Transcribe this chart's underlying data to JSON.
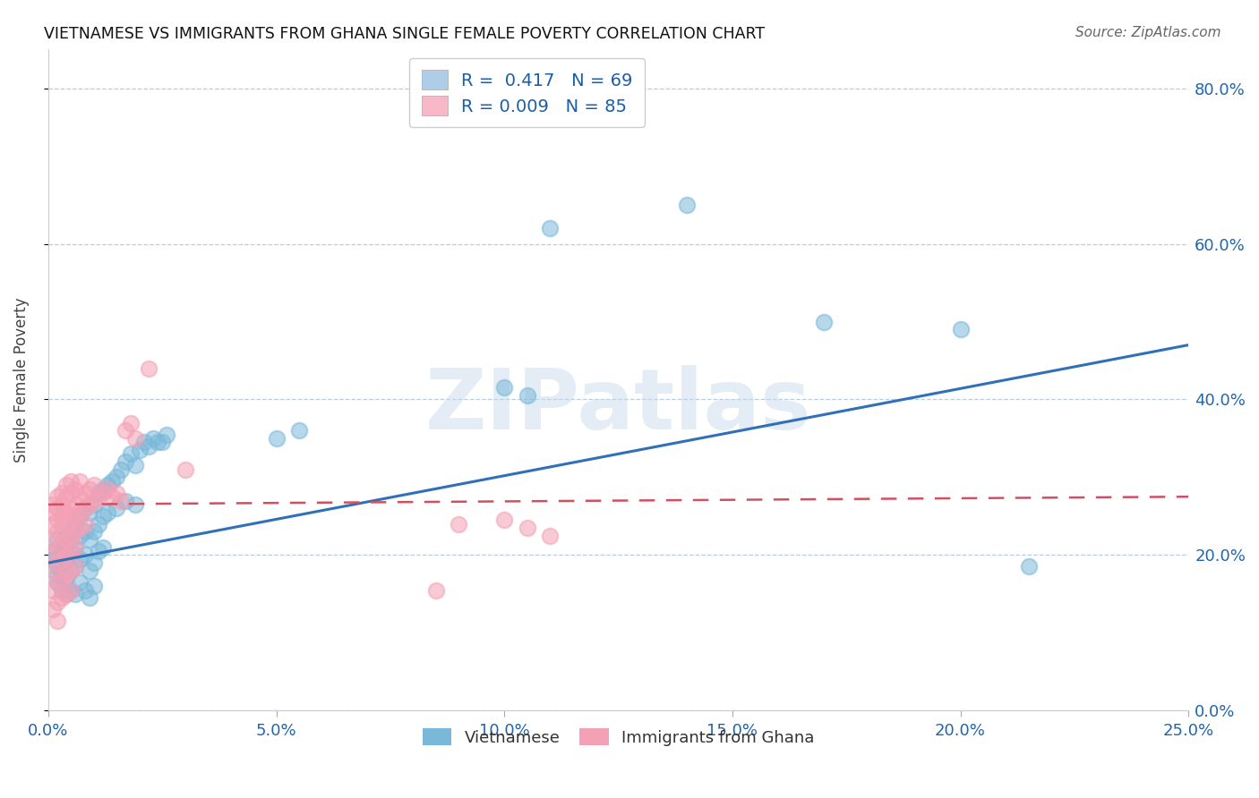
{
  "title": "VIETNAMESE VS IMMIGRANTS FROM GHANA SINGLE FEMALE POVERTY CORRELATION CHART",
  "source": "Source: ZipAtlas.com",
  "xlim": [
    0.0,
    0.25
  ],
  "ylim": [
    0.0,
    0.85
  ],
  "xtick_vals": [
    0.0,
    0.05,
    0.1,
    0.15,
    0.2,
    0.25
  ],
  "xtick_labels": [
    "0.0%",
    "5.0%",
    "10.0%",
    "15.0%",
    "20.0%",
    "25.0%"
  ],
  "ytick_vals": [
    0.0,
    0.2,
    0.4,
    0.6,
    0.8
  ],
  "ytick_labels": [
    "0.0%",
    "20.0%",
    "40.0%",
    "60.0%",
    "80.0%"
  ],
  "legend_entries": [
    {
      "label": "R =  0.417   N = 69",
      "facecolor": "#aecde8"
    },
    {
      "label": "R = 0.009   N = 85",
      "facecolor": "#f9b8c8"
    }
  ],
  "legend_labels": [
    "Vietnamese",
    "Immigrants from Ghana"
  ],
  "blue_color": "#7ab8d9",
  "pink_color": "#f4a0b5",
  "blue_line_color": "#3070b8",
  "pink_line_color": "#d05060",
  "watermark_text": "ZIPatlas",
  "ylabel": "Single Female Poverty",
  "blue_line": [
    [
      0.0,
      0.19
    ],
    [
      0.25,
      0.47
    ]
  ],
  "pink_line": [
    [
      0.0,
      0.265
    ],
    [
      0.25,
      0.275
    ]
  ],
  "blue_scatter": [
    [
      0.001,
      0.205
    ],
    [
      0.001,
      0.195
    ],
    [
      0.002,
      0.22
    ],
    [
      0.002,
      0.185
    ],
    [
      0.002,
      0.175
    ],
    [
      0.002,
      0.165
    ],
    [
      0.003,
      0.21
    ],
    [
      0.003,
      0.2
    ],
    [
      0.003,
      0.19
    ],
    [
      0.003,
      0.175
    ],
    [
      0.003,
      0.155
    ],
    [
      0.004,
      0.225
    ],
    [
      0.004,
      0.215
    ],
    [
      0.004,
      0.195
    ],
    [
      0.004,
      0.17
    ],
    [
      0.004,
      0.15
    ],
    [
      0.005,
      0.23
    ],
    [
      0.005,
      0.205
    ],
    [
      0.005,
      0.18
    ],
    [
      0.005,
      0.155
    ],
    [
      0.006,
      0.24
    ],
    [
      0.006,
      0.21
    ],
    [
      0.006,
      0.185
    ],
    [
      0.006,
      0.15
    ],
    [
      0.007,
      0.25
    ],
    [
      0.007,
      0.225
    ],
    [
      0.007,
      0.195
    ],
    [
      0.007,
      0.165
    ],
    [
      0.008,
      0.26
    ],
    [
      0.008,
      0.23
    ],
    [
      0.008,
      0.2
    ],
    [
      0.008,
      0.155
    ],
    [
      0.009,
      0.255
    ],
    [
      0.009,
      0.22
    ],
    [
      0.009,
      0.18
    ],
    [
      0.009,
      0.145
    ],
    [
      0.01,
      0.265
    ],
    [
      0.01,
      0.23
    ],
    [
      0.01,
      0.19
    ],
    [
      0.01,
      0.16
    ],
    [
      0.011,
      0.28
    ],
    [
      0.011,
      0.24
    ],
    [
      0.011,
      0.205
    ],
    [
      0.012,
      0.285
    ],
    [
      0.012,
      0.25
    ],
    [
      0.012,
      0.21
    ],
    [
      0.013,
      0.29
    ],
    [
      0.013,
      0.255
    ],
    [
      0.014,
      0.295
    ],
    [
      0.015,
      0.3
    ],
    [
      0.015,
      0.26
    ],
    [
      0.016,
      0.31
    ],
    [
      0.017,
      0.32
    ],
    [
      0.017,
      0.27
    ],
    [
      0.018,
      0.33
    ],
    [
      0.019,
      0.315
    ],
    [
      0.019,
      0.265
    ],
    [
      0.02,
      0.335
    ],
    [
      0.021,
      0.345
    ],
    [
      0.022,
      0.34
    ],
    [
      0.023,
      0.35
    ],
    [
      0.024,
      0.345
    ],
    [
      0.025,
      0.345
    ],
    [
      0.026,
      0.355
    ],
    [
      0.05,
      0.35
    ],
    [
      0.055,
      0.36
    ],
    [
      0.1,
      0.415
    ],
    [
      0.105,
      0.405
    ],
    [
      0.11,
      0.62
    ],
    [
      0.14,
      0.65
    ],
    [
      0.17,
      0.5
    ],
    [
      0.2,
      0.49
    ],
    [
      0.215,
      0.185
    ]
  ],
  "pink_scatter": [
    [
      0.001,
      0.265
    ],
    [
      0.001,
      0.255
    ],
    [
      0.001,
      0.24
    ],
    [
      0.001,
      0.22
    ],
    [
      0.001,
      0.2
    ],
    [
      0.001,
      0.18
    ],
    [
      0.001,
      0.155
    ],
    [
      0.001,
      0.13
    ],
    [
      0.002,
      0.275
    ],
    [
      0.002,
      0.26
    ],
    [
      0.002,
      0.245
    ],
    [
      0.002,
      0.23
    ],
    [
      0.002,
      0.21
    ],
    [
      0.002,
      0.19
    ],
    [
      0.002,
      0.165
    ],
    [
      0.002,
      0.14
    ],
    [
      0.002,
      0.115
    ],
    [
      0.003,
      0.28
    ],
    [
      0.003,
      0.265
    ],
    [
      0.003,
      0.25
    ],
    [
      0.003,
      0.235
    ],
    [
      0.003,
      0.215
    ],
    [
      0.003,
      0.195
    ],
    [
      0.003,
      0.17
    ],
    [
      0.003,
      0.145
    ],
    [
      0.004,
      0.29
    ],
    [
      0.004,
      0.275
    ],
    [
      0.004,
      0.255
    ],
    [
      0.004,
      0.24
    ],
    [
      0.004,
      0.22
    ],
    [
      0.004,
      0.2
    ],
    [
      0.004,
      0.175
    ],
    [
      0.004,
      0.15
    ],
    [
      0.005,
      0.295
    ],
    [
      0.005,
      0.28
    ],
    [
      0.005,
      0.26
    ],
    [
      0.005,
      0.245
    ],
    [
      0.005,
      0.225
    ],
    [
      0.005,
      0.205
    ],
    [
      0.005,
      0.18
    ],
    [
      0.005,
      0.155
    ],
    [
      0.006,
      0.285
    ],
    [
      0.006,
      0.265
    ],
    [
      0.006,
      0.25
    ],
    [
      0.006,
      0.23
    ],
    [
      0.006,
      0.21
    ],
    [
      0.006,
      0.185
    ],
    [
      0.007,
      0.295
    ],
    [
      0.007,
      0.275
    ],
    [
      0.007,
      0.255
    ],
    [
      0.007,
      0.235
    ],
    [
      0.008,
      0.28
    ],
    [
      0.008,
      0.26
    ],
    [
      0.008,
      0.24
    ],
    [
      0.009,
      0.285
    ],
    [
      0.009,
      0.265
    ],
    [
      0.01,
      0.29
    ],
    [
      0.01,
      0.27
    ],
    [
      0.011,
      0.275
    ],
    [
      0.012,
      0.28
    ],
    [
      0.013,
      0.285
    ],
    [
      0.014,
      0.275
    ],
    [
      0.015,
      0.28
    ],
    [
      0.016,
      0.27
    ],
    [
      0.017,
      0.36
    ],
    [
      0.018,
      0.37
    ],
    [
      0.019,
      0.35
    ],
    [
      0.022,
      0.44
    ],
    [
      0.03,
      0.31
    ],
    [
      0.1,
      0.245
    ],
    [
      0.105,
      0.235
    ],
    [
      0.09,
      0.24
    ],
    [
      0.085,
      0.155
    ],
    [
      0.11,
      0.225
    ]
  ]
}
